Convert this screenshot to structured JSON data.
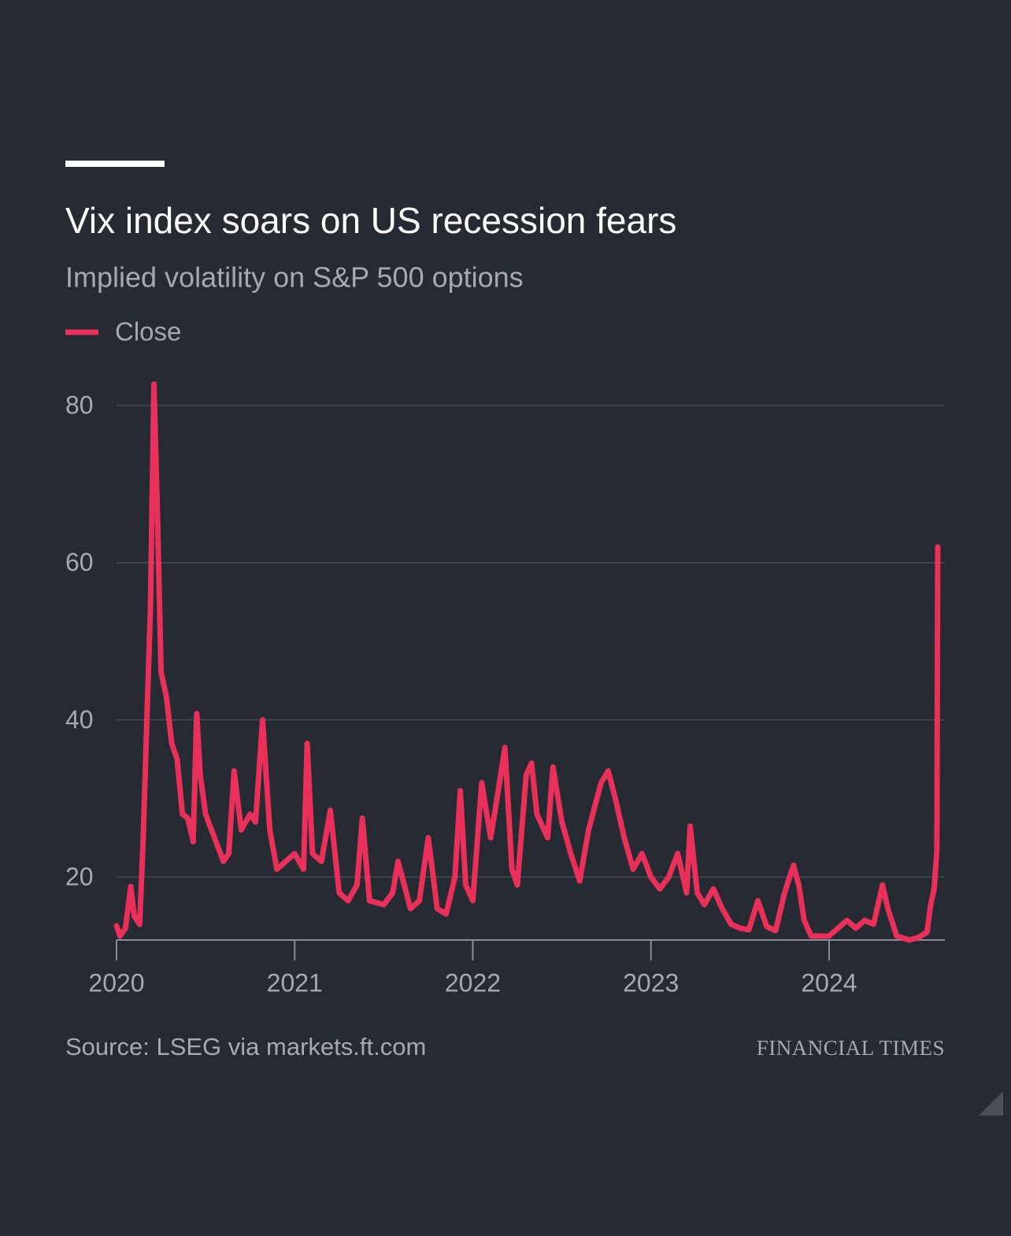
{
  "chart_data": {
    "type": "line",
    "title": "Vix index soars on US recession fears",
    "subtitle": "Implied volatility on S&P 500 options",
    "source": "Source: LSEG via markets.ft.com",
    "brand": "FINANCIAL TIMES",
    "x": [
      2020.0,
      2020.02,
      2020.05,
      2020.08,
      2020.1,
      2020.13,
      2020.15,
      2020.17,
      2020.19,
      2020.21,
      2020.23,
      2020.25,
      2020.28,
      2020.31,
      2020.34,
      2020.37,
      2020.4,
      2020.43,
      2020.45,
      2020.47,
      2020.5,
      2020.55,
      2020.6,
      2020.63,
      2020.66,
      2020.7,
      2020.75,
      2020.78,
      2020.82,
      2020.86,
      2020.9,
      2020.95,
      2021.0,
      2021.05,
      2021.07,
      2021.1,
      2021.15,
      2021.2,
      2021.25,
      2021.3,
      2021.35,
      2021.38,
      2021.42,
      2021.5,
      2021.55,
      2021.58,
      2021.65,
      2021.7,
      2021.75,
      2021.8,
      2021.85,
      2021.9,
      2021.93,
      2021.96,
      2022.0,
      2022.05,
      2022.1,
      2022.15,
      2022.18,
      2022.22,
      2022.25,
      2022.3,
      2022.33,
      2022.36,
      2022.42,
      2022.45,
      2022.5,
      2022.55,
      2022.6,
      2022.65,
      2022.72,
      2022.76,
      2022.8,
      2022.85,
      2022.9,
      2022.95,
      2023.0,
      2023.05,
      2023.1,
      2023.15,
      2023.2,
      2023.22,
      2023.26,
      2023.3,
      2023.35,
      2023.4,
      2023.45,
      2023.5,
      2023.55,
      2023.6,
      2023.65,
      2023.7,
      2023.75,
      2023.8,
      2023.83,
      2023.86,
      2023.9,
      2024.0,
      2024.05,
      2024.1,
      2024.15,
      2024.2,
      2024.25,
      2024.3,
      2024.33,
      2024.38,
      2024.45,
      2024.5,
      2024.55,
      2024.57,
      2024.59,
      2024.605,
      2024.61
    ],
    "series": [
      {
        "name": "Close",
        "color": "#e8305a",
        "values": [
          13.8,
          12.5,
          13.5,
          18.8,
          15,
          14,
          25,
          40,
          54,
          82.7,
          66,
          46,
          43,
          37,
          35,
          28,
          27.5,
          24.5,
          40.8,
          33,
          28,
          25,
          22,
          23,
          33.5,
          26,
          28,
          27,
          40,
          26,
          21,
          22,
          23,
          21,
          37,
          23,
          22,
          28.5,
          18,
          17,
          19,
          27.5,
          17,
          16.5,
          18,
          22,
          16,
          17,
          25,
          16,
          15.3,
          20,
          31,
          19,
          17,
          32,
          25,
          32,
          36.5,
          21,
          19,
          33,
          34.5,
          28,
          25,
          34,
          27,
          23,
          19.5,
          26,
          32,
          33.5,
          30,
          25,
          21,
          23,
          20,
          18.5,
          20,
          23,
          18,
          26.5,
          18,
          16.5,
          18.5,
          16,
          14,
          13.5,
          13.3,
          17,
          13.7,
          13.2,
          18,
          21.5,
          19,
          14.5,
          12.5,
          12.5,
          13.5,
          14.5,
          13.5,
          14.5,
          14,
          19,
          16,
          12.5,
          12,
          12.3,
          13,
          16.5,
          18.5,
          23.4,
          62
        ]
      }
    ],
    "xlim": [
      2020,
      2024.65
    ],
    "xticks": [
      2020,
      2021,
      2022,
      2023,
      2024
    ],
    "ylim": [
      12,
      80
    ],
    "yticks": [
      20,
      40,
      60,
      80
    ],
    "grid": true
  }
}
